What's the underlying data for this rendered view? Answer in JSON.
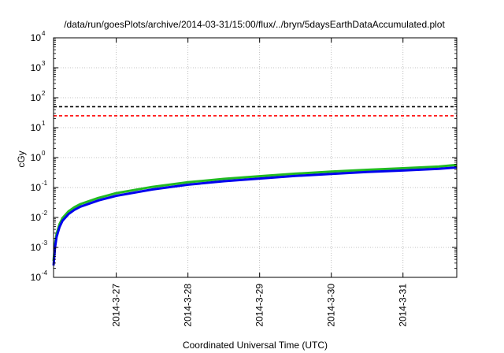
{
  "chart_data": {
    "type": "line",
    "title": "/data/run/goesPlots/archive/2014-03-31/15:00/flux/../bryn/5daysEarthDataAccumulated.plot",
    "xlabel": "Coordinated Universal Time (UTC)",
    "ylabel": "cGy",
    "y_scale": "log",
    "ylim": [
      0.0001,
      10000
    ],
    "xlim": [
      "2014-03-26T03:00",
      "2014-03-31T18:00"
    ],
    "x_ticks": [
      "2014-3-27",
      "2014-3-28",
      "2014-3-29",
      "2014-3-30",
      "2014-3-31"
    ],
    "y_ticks": [
      {
        "base": "10",
        "exp": "-4",
        "value": 0.0001
      },
      {
        "base": "10",
        "exp": "-3",
        "value": 0.001
      },
      {
        "base": "10",
        "exp": "-2",
        "value": 0.01
      },
      {
        "base": "10",
        "exp": "-1",
        "value": 0.1
      },
      {
        "base": "10",
        "exp": "0",
        "value": 1
      },
      {
        "base": "10",
        "exp": "1",
        "value": 10
      },
      {
        "base": "10",
        "exp": "2",
        "value": 100
      },
      {
        "base": "10",
        "exp": "3",
        "value": 1000
      },
      {
        "base": "10",
        "exp": "4",
        "value": 10000
      }
    ],
    "grid": true,
    "legend": "none",
    "series": [
      {
        "color": "#000000",
        "style": "dashed",
        "x": [
          "2014-03-26T03:00",
          "2014-03-31T18:00"
        ],
        "values": [
          50,
          50
        ]
      },
      {
        "color": "#ff0000",
        "style": "dashed",
        "x": [
          "2014-03-26T03:00",
          "2014-03-31T18:00"
        ],
        "values": [
          25,
          25
        ]
      },
      {
        "color": "#22bb22",
        "style": "solid",
        "x": [
          "2014-03-26T03:00",
          "2014-03-26T03:30",
          "2014-03-26T04:00",
          "2014-03-26T05:00",
          "2014-03-26T06:00",
          "2014-03-26T08:00",
          "2014-03-26T10:00",
          "2014-03-26T12:00",
          "2014-03-26T18:00",
          "2014-03-27T00:00",
          "2014-03-27T12:00",
          "2014-03-28T00:00",
          "2014-03-28T12:00",
          "2014-03-29T00:00",
          "2014-03-29T12:00",
          "2014-03-30T00:00",
          "2014-03-30T12:00",
          "2014-03-31T00:00",
          "2014-03-31T12:00",
          "2014-03-31T18:00"
        ],
        "values": [
          0.00035,
          0.0013,
          0.0028,
          0.006,
          0.0095,
          0.016,
          0.022,
          0.028,
          0.045,
          0.065,
          0.105,
          0.15,
          0.195,
          0.24,
          0.29,
          0.34,
          0.39,
          0.44,
          0.5,
          0.57
        ]
      },
      {
        "color": "#0000ee",
        "style": "solid",
        "x": [
          "2014-03-26T03:00",
          "2014-03-26T03:30",
          "2014-03-26T04:00",
          "2014-03-26T05:00",
          "2014-03-26T06:00",
          "2014-03-26T08:00",
          "2014-03-26T10:00",
          "2014-03-26T12:00",
          "2014-03-26T18:00",
          "2014-03-27T00:00",
          "2014-03-27T12:00",
          "2014-03-28T00:00",
          "2014-03-28T12:00",
          "2014-03-29T00:00",
          "2014-03-29T12:00",
          "2014-03-30T00:00",
          "2014-03-30T12:00",
          "2014-03-31T00:00",
          "2014-03-31T12:00",
          "2014-03-31T18:00"
        ],
        "values": [
          0.00025,
          0.001,
          0.0022,
          0.0048,
          0.0078,
          0.013,
          0.018,
          0.023,
          0.037,
          0.053,
          0.086,
          0.124,
          0.162,
          0.2,
          0.243,
          0.285,
          0.33,
          0.37,
          0.42,
          0.47
        ]
      }
    ]
  }
}
